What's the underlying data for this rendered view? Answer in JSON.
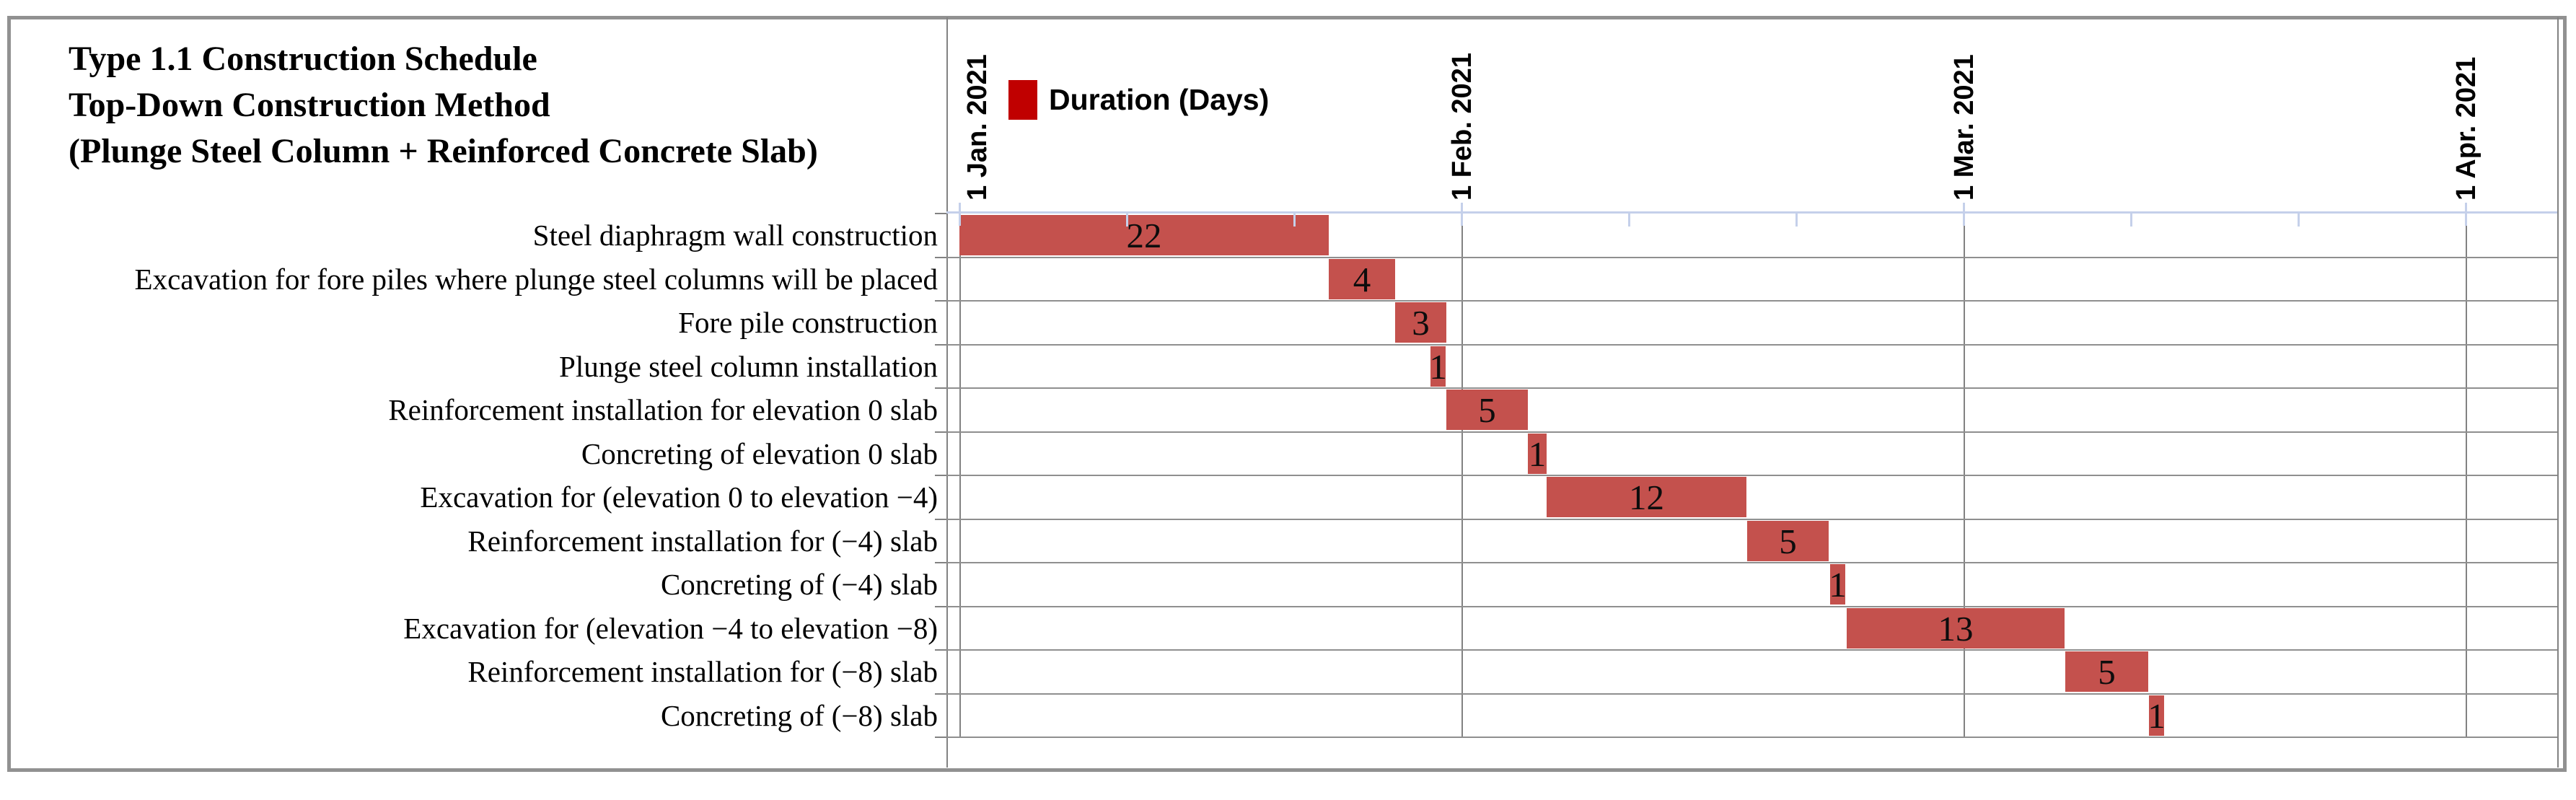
{
  "title": {
    "lines": [
      "Type 1.1 Construction Schedule",
      "Top-Down Construction Method",
      "(Plunge Steel Column + Reinforced Concrete Slab)"
    ]
  },
  "legend": {
    "label": "Duration (Days)",
    "swatch_color": "#C00000"
  },
  "chart_data": {
    "type": "bar",
    "subtype": "horizontal-gantt",
    "title": "Type 1.1 Construction Schedule — Top-Down Construction Method (Plunge Steel Column + Reinforced Concrete Slab)",
    "legend_entries": [
      "Duration (Days)"
    ],
    "x_axis": {
      "kind": "date",
      "tick_labels": [
        "1 Jan. 2021",
        "1 Feb. 2021",
        "1 Mar. 2021",
        "1 Apr. 2021"
      ],
      "minor_ticks_per_month": 3,
      "axis_color": "#C5D0EA",
      "month_gridline_color": "#828282"
    },
    "grid": "on",
    "categories": [
      "Steel diaphragm wall construction",
      "Excavation for fore piles where plunge steel columns will be placed",
      "Fore pile construction",
      "Plunge steel column installation",
      "Reinforcement installation for elevation 0 slab",
      "Concreting of elevation 0 slab",
      "Excavation for (elevation 0 to elevation −4)",
      "Reinforcement installation for (−4) slab",
      "Concreting of (−4) slab",
      "Excavation for (elevation −4 to elevation −8)",
      "Reinforcement installation for (−8) slab",
      "Concreting of (−8) slab"
    ],
    "series": [
      {
        "name": "Duration (Days)",
        "values": [
          22,
          4,
          3,
          1,
          5,
          1,
          12,
          5,
          1,
          13,
          5,
          1
        ]
      }
    ],
    "task_day_spans_from_jan1": [
      [
        0,
        22.8
      ],
      [
        22.8,
        26.9
      ],
      [
        26.9,
        30.05
      ],
      [
        29.1,
        30.05
      ],
      [
        30.05,
        34.7
      ],
      [
        34.7,
        35.75
      ],
      [
        35.75,
        46.9
      ],
      [
        46.95,
        51.5
      ],
      [
        51.55,
        52.4
      ],
      [
        52.5,
        65.25
      ],
      [
        65.3,
        70.4
      ],
      [
        70.45,
        71.4
      ],
      "note: day offsets since 1 Jan. 2021 as drawn; labelled durations are the series values"
    ],
    "bar_color": "#C4514D",
    "bar_label_color": "#0D0D0D"
  }
}
